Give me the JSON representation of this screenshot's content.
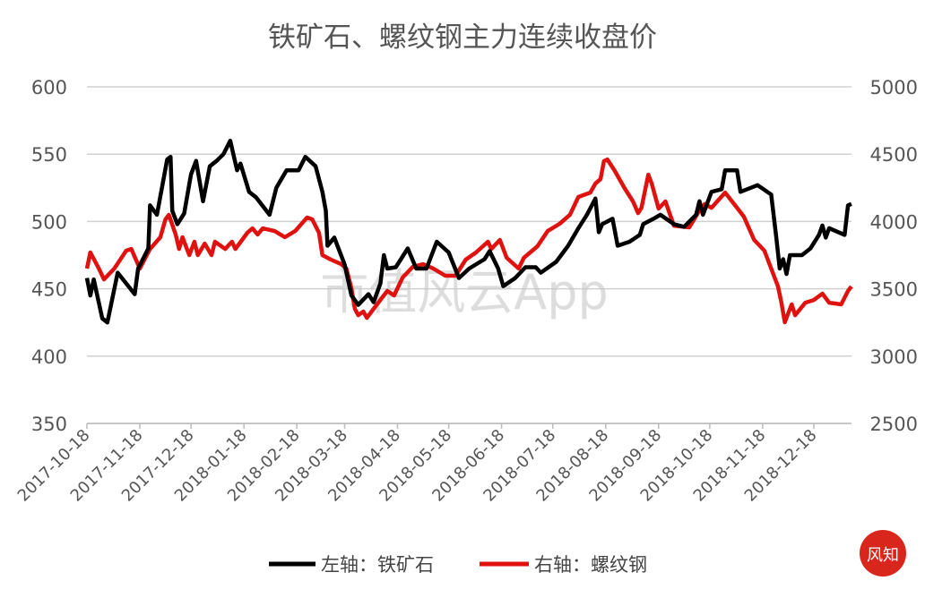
{
  "chart_data": {
    "type": "line",
    "title": "铁矿石、螺纹钢主力连续收盘价",
    "watermark": "市值风云App",
    "logo_text": "风知",
    "y_left": {
      "ylim": [
        350,
        600
      ],
      "ticks": [
        350,
        400,
        450,
        500,
        550,
        600
      ]
    },
    "y_right": {
      "ylim": [
        2500,
        5000
      ],
      "ticks": [
        2500,
        3000,
        3500,
        4000,
        4500,
        5000
      ]
    },
    "x_ticks": [
      "2017-10-18",
      "2017-11-18",
      "2017-12-18",
      "2018-01-18",
      "2018-02-18",
      "2018-03-18",
      "2018-04-18",
      "2018-05-18",
      "2018-06-18",
      "2018-07-18",
      "2018-08-18",
      "2018-09-18",
      "2018-10-18",
      "2018-11-18",
      "2018-12-18"
    ],
    "xlim": [
      "2017-10-18",
      "2019-01-09"
    ],
    "grid": true,
    "legend_position": "bottom",
    "colors": {
      "iron_ore": "#000000",
      "rebar": "#e0120f",
      "grid": "#d0d0d0",
      "text": "#555555"
    },
    "series": [
      {
        "name": "左轴：铁矿石",
        "axis": "left",
        "points": [
          [
            "2017-10-18",
            458
          ],
          [
            "2017-10-20",
            445
          ],
          [
            "2017-10-22",
            457
          ],
          [
            "2017-10-27",
            428
          ],
          [
            "2017-10-30",
            425
          ],
          [
            "2017-11-05",
            462
          ],
          [
            "2017-11-15",
            446
          ],
          [
            "2017-11-17",
            465
          ],
          [
            "2017-11-23",
            480
          ],
          [
            "2017-11-24",
            512
          ],
          [
            "2017-11-28",
            505
          ],
          [
            "2017-12-04",
            546
          ],
          [
            "2017-12-06",
            548
          ],
          [
            "2017-12-07",
            508
          ],
          [
            "2017-12-10",
            498
          ],
          [
            "2017-12-14",
            506
          ],
          [
            "2017-12-18",
            535
          ],
          [
            "2017-12-21",
            545
          ],
          [
            "2017-12-25",
            515
          ],
          [
            "2017-12-29",
            541
          ],
          [
            "2018-01-02",
            545
          ],
          [
            "2018-01-06",
            550
          ],
          [
            "2018-01-10",
            560
          ],
          [
            "2018-01-14",
            538
          ],
          [
            "2018-01-16",
            543
          ],
          [
            "2018-01-21",
            522
          ],
          [
            "2018-01-25",
            518
          ],
          [
            "2018-02-02",
            505
          ],
          [
            "2018-02-06",
            525
          ],
          [
            "2018-02-12",
            538
          ],
          [
            "2018-02-19",
            538
          ],
          [
            "2018-02-23",
            548
          ],
          [
            "2018-03-01",
            541
          ],
          [
            "2018-03-05",
            522
          ],
          [
            "2018-03-07",
            508
          ],
          [
            "2018-03-08",
            482
          ],
          [
            "2018-03-12",
            488
          ],
          [
            "2018-03-18",
            468
          ],
          [
            "2018-03-22",
            445
          ],
          [
            "2018-03-26",
            438
          ],
          [
            "2018-04-01",
            446
          ],
          [
            "2018-04-04",
            440
          ],
          [
            "2018-04-08",
            454
          ],
          [
            "2018-04-10",
            475
          ],
          [
            "2018-04-12",
            465
          ],
          [
            "2018-04-17",
            466
          ],
          [
            "2018-04-24",
            480
          ],
          [
            "2018-04-29",
            465
          ],
          [
            "2018-05-05",
            465
          ],
          [
            "2018-05-11",
            485
          ],
          [
            "2018-05-18",
            477
          ],
          [
            "2018-05-24",
            458
          ],
          [
            "2018-05-30",
            465
          ],
          [
            "2018-06-08",
            472
          ],
          [
            "2018-06-11",
            478
          ],
          [
            "2018-06-16",
            465
          ],
          [
            "2018-06-19",
            452
          ],
          [
            "2018-06-26",
            458
          ],
          [
            "2018-07-02",
            466
          ],
          [
            "2018-07-08",
            466
          ],
          [
            "2018-07-11",
            462
          ],
          [
            "2018-07-20",
            470
          ],
          [
            "2018-07-27",
            482
          ],
          [
            "2018-08-02",
            495
          ],
          [
            "2018-08-07",
            505
          ],
          [
            "2018-08-12",
            517
          ],
          [
            "2018-08-14",
            492
          ],
          [
            "2018-08-16",
            498
          ],
          [
            "2018-08-22",
            502
          ],
          [
            "2018-08-25",
            482
          ],
          [
            "2018-09-01",
            485
          ],
          [
            "2018-09-07",
            490
          ],
          [
            "2018-09-09",
            498
          ],
          [
            "2018-09-15",
            502
          ],
          [
            "2018-09-19",
            505
          ],
          [
            "2018-09-27",
            498
          ],
          [
            "2018-10-03",
            496
          ],
          [
            "2018-10-10",
            505
          ],
          [
            "2018-10-12",
            515
          ],
          [
            "2018-10-14",
            505
          ],
          [
            "2018-10-19",
            522
          ],
          [
            "2018-10-25",
            524
          ],
          [
            "2018-10-27",
            538
          ],
          [
            "2018-11-03",
            538
          ],
          [
            "2018-11-05",
            522
          ],
          [
            "2018-11-11",
            525
          ],
          [
            "2018-11-15",
            527
          ],
          [
            "2018-11-23",
            520
          ],
          [
            "2018-11-26",
            488
          ],
          [
            "2018-11-28",
            465
          ],
          [
            "2018-11-30",
            472
          ],
          [
            "2018-12-02",
            461
          ],
          [
            "2018-12-04",
            475
          ],
          [
            "2018-12-11",
            475
          ],
          [
            "2018-12-16",
            480
          ],
          [
            "2018-12-21",
            490
          ],
          [
            "2018-12-23",
            497
          ],
          [
            "2018-12-25",
            488
          ],
          [
            "2018-12-27",
            495
          ],
          [
            "2019-01-05",
            490
          ],
          [
            "2019-01-07",
            512
          ],
          [
            "2019-01-09",
            513
          ]
        ]
      },
      {
        "name": "右轴：螺纹钢",
        "axis": "right",
        "points": [
          [
            "2017-10-18",
            3650
          ],
          [
            "2017-10-20",
            3770
          ],
          [
            "2017-10-25",
            3650
          ],
          [
            "2017-10-28",
            3570
          ],
          [
            "2017-11-03",
            3650
          ],
          [
            "2017-11-10",
            3783
          ],
          [
            "2017-11-13",
            3796
          ],
          [
            "2017-11-18",
            3650
          ],
          [
            "2017-11-24",
            3796
          ],
          [
            "2017-11-30",
            3883
          ],
          [
            "2017-12-03",
            4016
          ],
          [
            "2017-12-05",
            4049
          ],
          [
            "2017-12-09",
            3903
          ],
          [
            "2017-12-11",
            3796
          ],
          [
            "2017-12-13",
            3883
          ],
          [
            "2017-12-17",
            3750
          ],
          [
            "2017-12-20",
            3850
          ],
          [
            "2017-12-22",
            3750
          ],
          [
            "2017-12-26",
            3836
          ],
          [
            "2017-12-30",
            3750
          ],
          [
            "2018-01-01",
            3850
          ],
          [
            "2018-01-07",
            3796
          ],
          [
            "2018-01-11",
            3850
          ],
          [
            "2018-01-13",
            3796
          ],
          [
            "2018-01-20",
            3916
          ],
          [
            "2018-01-23",
            3949
          ],
          [
            "2018-01-26",
            3903
          ],
          [
            "2018-01-29",
            3949
          ],
          [
            "2018-02-05",
            3929
          ],
          [
            "2018-02-11",
            3883
          ],
          [
            "2018-02-17",
            3929
          ],
          [
            "2018-02-24",
            4029
          ],
          [
            "2018-02-27",
            4016
          ],
          [
            "2018-03-03",
            3916
          ],
          [
            "2018-03-05",
            3750
          ],
          [
            "2018-03-10",
            3717
          ],
          [
            "2018-03-16",
            3683
          ],
          [
            "2018-03-19",
            3650
          ],
          [
            "2018-03-22",
            3504
          ],
          [
            "2018-03-24",
            3351
          ],
          [
            "2018-03-26",
            3304
          ],
          [
            "2018-03-29",
            3331
          ],
          [
            "2018-03-31",
            3284
          ],
          [
            "2018-04-06",
            3384
          ],
          [
            "2018-04-12",
            3484
          ],
          [
            "2018-04-16",
            3451
          ],
          [
            "2018-04-21",
            3584
          ],
          [
            "2018-04-27",
            3663
          ],
          [
            "2018-05-03",
            3683
          ],
          [
            "2018-05-09",
            3650
          ],
          [
            "2018-05-16",
            3597
          ],
          [
            "2018-05-22",
            3597
          ],
          [
            "2018-05-28",
            3717
          ],
          [
            "2018-06-03",
            3770
          ],
          [
            "2018-06-10",
            3850
          ],
          [
            "2018-06-12",
            3796
          ],
          [
            "2018-06-17",
            3863
          ],
          [
            "2018-06-21",
            3730
          ],
          [
            "2018-06-28",
            3650
          ],
          [
            "2018-07-01",
            3730
          ],
          [
            "2018-07-09",
            3816
          ],
          [
            "2018-07-15",
            3929
          ],
          [
            "2018-07-22",
            3983
          ],
          [
            "2018-07-28",
            4049
          ],
          [
            "2018-08-02",
            4182
          ],
          [
            "2018-08-09",
            4215
          ],
          [
            "2018-08-12",
            4282
          ],
          [
            "2018-08-15",
            4315
          ],
          [
            "2018-08-17",
            4448
          ],
          [
            "2018-08-19",
            4461
          ],
          [
            "2018-08-23",
            4382
          ],
          [
            "2018-08-29",
            4249
          ],
          [
            "2018-09-03",
            4149
          ],
          [
            "2018-09-06",
            4062
          ],
          [
            "2018-09-08",
            4102
          ],
          [
            "2018-09-12",
            4348
          ],
          [
            "2018-09-14",
            4282
          ],
          [
            "2018-09-18",
            4096
          ],
          [
            "2018-09-22",
            4149
          ],
          [
            "2018-09-27",
            3969
          ],
          [
            "2018-10-06",
            3956
          ],
          [
            "2018-10-12",
            4082
          ],
          [
            "2018-10-15",
            4129
          ],
          [
            "2018-10-19",
            4102
          ],
          [
            "2018-10-27",
            4215
          ],
          [
            "2018-11-03",
            4102
          ],
          [
            "2018-11-07",
            4036
          ],
          [
            "2018-11-13",
            3863
          ],
          [
            "2018-11-19",
            3783
          ],
          [
            "2018-11-24",
            3617
          ],
          [
            "2018-11-27",
            3517
          ],
          [
            "2018-11-29",
            3397
          ],
          [
            "2018-12-01",
            3251
          ],
          [
            "2018-12-03",
            3318
          ],
          [
            "2018-12-05",
            3384
          ],
          [
            "2018-12-07",
            3304
          ],
          [
            "2018-12-13",
            3397
          ],
          [
            "2018-12-18",
            3417
          ],
          [
            "2018-12-23",
            3464
          ],
          [
            "2018-12-27",
            3397
          ],
          [
            "2019-01-03",
            3384
          ],
          [
            "2019-01-07",
            3484
          ],
          [
            "2019-01-09",
            3517
          ]
        ]
      }
    ]
  }
}
